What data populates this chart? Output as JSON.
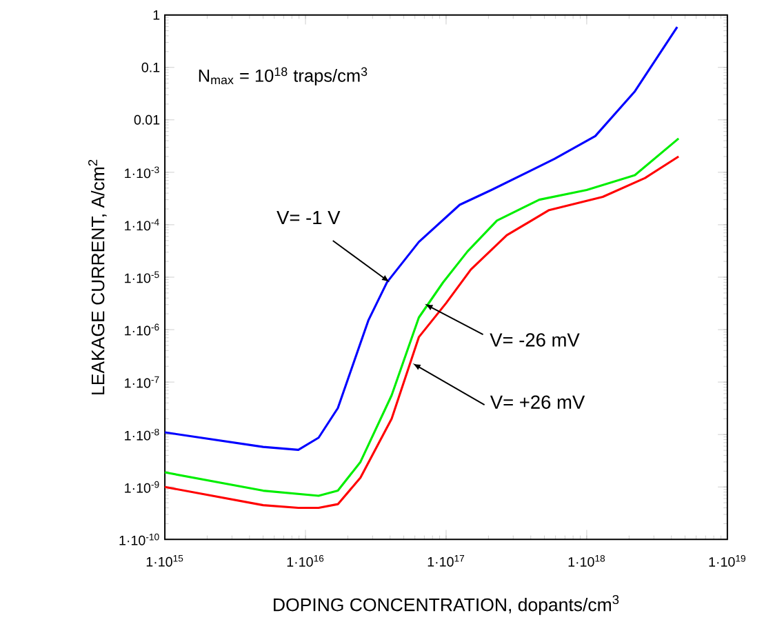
{
  "chart_data": {
    "type": "line",
    "xlabel": "DOPING CONCENTRATION, dopants/cm$^{3}$",
    "ylabel": "LEAKAGE CURRENT, A/cm$^{2}$",
    "annotations": [
      "N$_{max}$ = 10$^{18}$ traps/cm$^{3}$",
      {
        "text": "V= -1 V",
        "x": 3.9e+16,
        "y": 8.3e-06
      },
      {
        "text": "V= -26 mV",
        "x": 7.2e+16,
        "y": 3e-06
      },
      {
        "text": "V= +26 mV",
        "x": 5.9e+16,
        "y": 2.2e-07
      }
    ],
    "log": "xy",
    "xlim": [
      1000000000000000.0,
      1e+19
    ],
    "ylim": [
      1e-10,
      1
    ],
    "xticks": [
      {
        "value": 1000000000000000.0,
        "label": "1·10$^{15}$"
      },
      {
        "value": 1e+16,
        "label": "1·10$^{16}$"
      },
      {
        "value": 1e+17,
        "label": "1·10$^{17}$"
      },
      {
        "value": 1e+18,
        "label": "1·10$^{18}$"
      },
      {
        "value": 1e+19,
        "label": "1·10$^{19}$"
      }
    ],
    "yticks": [
      {
        "value": 1e-10,
        "label": "1·10$^{-10}$"
      },
      {
        "value": 1e-09,
        "label": "1·10$^{-9}$"
      },
      {
        "value": 1e-08,
        "label": "1·10$^{-8}$"
      },
      {
        "value": 1e-07,
        "label": "1·10$^{-7}$"
      },
      {
        "value": 1e-06,
        "label": "1·10$^{-6}$"
      },
      {
        "value": 1e-05,
        "label": "1·10$^{-5}$"
      },
      {
        "value": 0.0001,
        "label": "1·10$^{-4}$"
      },
      {
        "value": 0.001,
        "label": "1·10$^{-3}$"
      },
      0.01,
      0.1,
      1
    ],
    "series": [
      {
        "color": "#0000ff",
        "x": [
          1000000000000000.0,
          5000000000000000.0,
          8900000000000000.0,
          1.24e+16,
          1.7e+16,
          2.8e+16,
          3.8e+16,
          6.4e+16,
          1.25e+17,
          2.1e+17,
          5.9e+17,
          1.15e+18,
          2.2e+18,
          4.4e+18
        ],
        "values": [
          1.1e-08,
          5.8e-09,
          5.1e-09,
          8.7e-09,
          3.2e-08,
          1.5e-06,
          8e-06,
          4.7e-05,
          0.00024,
          0.00046,
          0.0018,
          0.0049,
          0.035,
          0.59
        ]
      },
      {
        "color": "#00ee00",
        "x": [
          1000000000000000.0,
          5000000000000000.0,
          1.24e+16,
          1.7e+16,
          2.46e+16,
          4.1e+16,
          6.4e+16,
          9.5e+16,
          1.42e+17,
          2.3e+17,
          4.6e+17,
          1e+18,
          2.2e+18,
          4.5e+18
        ],
        "values": [
          1.9e-09,
          8.5e-10,
          6.8e-10,
          8.5e-10,
          3e-09,
          5.6e-08,
          1.7e-06,
          7.9e-06,
          3.1e-05,
          0.00012,
          0.0003,
          0.00046,
          0.00088,
          0.0044
        ]
      },
      {
        "color": "#ff0000",
        "x": [
          1000000000000000.0,
          5000000000000000.0,
          8900000000000000.0,
          1.24e+16,
          1.7e+16,
          2.46e+16,
          4.1e+16,
          6.4e+16,
          1e+17,
          1.5e+17,
          2.7e+17,
          5.4e+17,
          1.3e+18,
          2.6e+18,
          4.5e+18
        ],
        "values": [
          1e-09,
          4.5e-10,
          4e-10,
          4e-10,
          4.7e-10,
          1.5e-09,
          2e-08,
          7.2e-07,
          3.2e-06,
          1.4e-05,
          6.3e-05,
          0.00019,
          0.00034,
          0.00078,
          0.002
        ]
      }
    ]
  }
}
